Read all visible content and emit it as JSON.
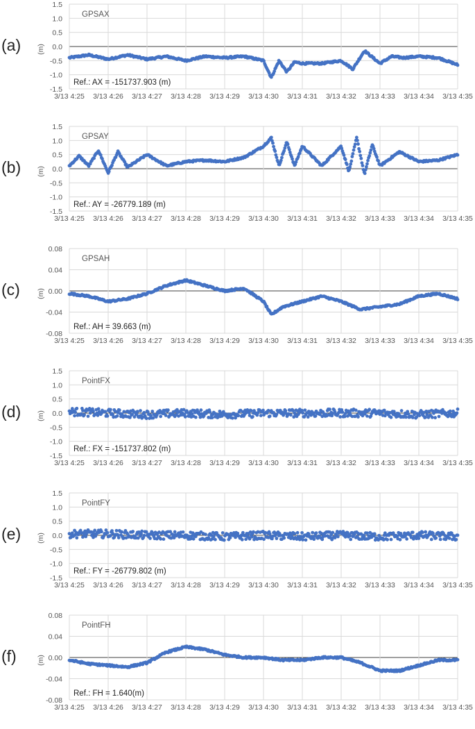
{
  "x_labels": [
    "3/13 4:25",
    "3/13 4:26",
    "3/13 4:27",
    "3/13 4:28",
    "3/13 4:29",
    "3/13 4:30",
    "3/13 4:31",
    "3/13 4:32",
    "3/13 4:33",
    "3/13 4:34",
    "3/13 4:35"
  ],
  "marker_color": "#4472c4",
  "chart_data": [
    {
      "type": "scatter",
      "letter": "(a)",
      "title": "GPSAX",
      "ylabel": "(m)",
      "reference": "Ref.: AX = -151737.903 (m)",
      "ylim": [
        -1.5,
        1.5
      ],
      "yticks": [
        "1.5",
        "1.0",
        "0.5",
        "0.0",
        "-0.5",
        "-1.0",
        "-1.5"
      ],
      "ytick_values": [
        1.5,
        1.0,
        0.5,
        0.0,
        -0.5,
        -1.0,
        -1.5
      ],
      "x_unit": "minutes after 3/13 4:25",
      "xlim": [
        0,
        10
      ],
      "series": [
        {
          "x": [
            0,
            0.5,
            1,
            1.5,
            2,
            2.5,
            3,
            3.5,
            4,
            4.5,
            5,
            5.2,
            5.4,
            5.6,
            5.8,
            6,
            6.5,
            7,
            7.3,
            7.6,
            8,
            8.3,
            8.6,
            9,
            9.5,
            10
          ],
          "y": [
            -0.4,
            -0.3,
            -0.45,
            -0.3,
            -0.45,
            -0.35,
            -0.5,
            -0.35,
            -0.4,
            -0.35,
            -0.5,
            -1.1,
            -0.5,
            -0.9,
            -0.55,
            -0.6,
            -0.6,
            -0.5,
            -0.8,
            -0.15,
            -0.6,
            -0.35,
            -0.4,
            -0.35,
            -0.4,
            -0.65
          ]
        }
      ]
    },
    {
      "type": "scatter",
      "letter": "(b)",
      "title": "GPSAY",
      "ylabel": "(m)",
      "reference": "Ref.: AY =  -26779.189 (m)",
      "ylim": [
        -1.5,
        1.5
      ],
      "yticks": [
        "1.5",
        "1.0",
        "0.5",
        "0.0",
        "-0.5",
        "-1.0",
        "-1.5"
      ],
      "ytick_values": [
        1.5,
        1.0,
        0.5,
        0.0,
        -0.5,
        -1.0,
        -1.5
      ],
      "x_unit": "minutes after 3/13 4:25",
      "xlim": [
        0,
        10
      ],
      "series": [
        {
          "x": [
            0,
            0.25,
            0.5,
            0.75,
            1,
            1.25,
            1.5,
            2,
            2.5,
            3,
            3.5,
            4,
            4.5,
            5,
            5.2,
            5.4,
            5.6,
            5.8,
            6,
            6.5,
            7,
            7.2,
            7.4,
            7.6,
            7.8,
            8,
            8.5,
            9,
            9.5,
            10
          ],
          "y": [
            0.1,
            0.45,
            0.1,
            0.65,
            -0.15,
            0.6,
            0.05,
            0.5,
            0.1,
            0.25,
            0.3,
            0.25,
            0.4,
            0.8,
            1.1,
            0.1,
            0.95,
            0.1,
            0.8,
            0.1,
            0.8,
            -0.1,
            1.1,
            -0.2,
            0.85,
            0.1,
            0.6,
            0.25,
            0.3,
            0.5
          ]
        }
      ]
    },
    {
      "type": "scatter",
      "letter": "(c)",
      "title": "GPSAH",
      "ylabel": "(m)",
      "reference": "Ref.: AH = 39.663 (m)",
      "ylim": [
        -0.08,
        0.08
      ],
      "yticks": [
        "0.08",
        "0.04",
        "0.00",
        "-0.04",
        "-0.08"
      ],
      "ytick_values": [
        0.08,
        0.04,
        0.0,
        -0.04,
        -0.08
      ],
      "x_unit": "minutes after 3/13 4:25",
      "xlim": [
        0,
        10
      ],
      "series": [
        {
          "x": [
            0,
            0.5,
            1,
            1.5,
            2,
            2.5,
            3,
            3.5,
            4,
            4.5,
            5,
            5.2,
            5.5,
            6,
            6.5,
            7,
            7.5,
            8,
            8.5,
            9,
            9.5,
            10
          ],
          "y": [
            -0.005,
            -0.01,
            -0.02,
            -0.015,
            -0.005,
            0.01,
            0.02,
            0.01,
            0.0,
            0.005,
            -0.02,
            -0.045,
            -0.03,
            -0.02,
            -0.01,
            -0.02,
            -0.035,
            -0.03,
            -0.025,
            -0.01,
            -0.005,
            -0.015
          ]
        }
      ]
    },
    {
      "type": "scatter",
      "letter": "(d)",
      "title": "PointFX",
      "ylabel": "(m)",
      "reference": "Ref.: FX = -151737.802 (m)",
      "ylim": [
        -1.5,
        1.5
      ],
      "yticks": [
        "1.5",
        "1.0",
        "0.5",
        "0.0",
        "-0.5",
        "-1.0",
        "-1.5"
      ],
      "ytick_values": [
        1.5,
        1.0,
        0.5,
        0.0,
        -0.5,
        -1.0,
        -1.5
      ],
      "x_unit": "minutes after 3/13 4:25",
      "xlim": [
        0,
        10
      ],
      "series": [
        {
          "x": [
            0,
            1,
            2,
            3,
            4,
            5,
            6,
            7,
            8,
            9,
            10
          ],
          "y": [
            0.05,
            0.0,
            -0.05,
            0.0,
            -0.05,
            0.0,
            0.0,
            0.0,
            0.0,
            -0.05,
            0.0
          ]
        }
      ]
    },
    {
      "type": "scatter",
      "letter": "(e)",
      "title": "PointFY",
      "ylabel": "(m)",
      "reference": "Ref.: FY = -26779.802 (m)",
      "ylim": [
        -1.5,
        1.5
      ],
      "yticks": [
        "1.5",
        "1.0",
        "0.5",
        "0.0",
        "-0.5",
        "-1.0",
        "-1.5"
      ],
      "ytick_values": [
        1.5,
        1.0,
        0.5,
        0.0,
        -0.5,
        -1.0,
        -1.5
      ],
      "x_unit": "minutes after 3/13 4:25",
      "xlim": [
        0,
        10
      ],
      "series": [
        {
          "x": [
            0,
            1,
            2,
            3,
            4,
            5,
            6,
            7,
            8,
            9,
            10
          ],
          "y": [
            0.05,
            0.05,
            0.0,
            0.0,
            -0.05,
            0.0,
            -0.05,
            0.0,
            -0.05,
            0.0,
            -0.05
          ]
        }
      ]
    },
    {
      "type": "scatter",
      "letter": "(f)",
      "title": "PointFH",
      "ylabel": "(m)",
      "reference": "Ref.: FH = 1.640(m)",
      "ylim": [
        -0.08,
        0.08
      ],
      "yticks": [
        "0.08",
        "0.04",
        "0.00",
        "-0.04",
        "-0.08"
      ],
      "ytick_values": [
        0.08,
        0.04,
        0.0,
        -0.04,
        -0.08
      ],
      "x_unit": "minutes after 3/13 4:25",
      "xlim": [
        0,
        10
      ],
      "series": [
        {
          "x": [
            0,
            0.5,
            1,
            1.5,
            2,
            2.5,
            3,
            3.5,
            4,
            4.5,
            5,
            5.5,
            6,
            6.5,
            7,
            7.5,
            8,
            8.5,
            9,
            9.5,
            10
          ],
          "y": [
            -0.005,
            -0.012,
            -0.015,
            -0.018,
            -0.01,
            0.01,
            0.02,
            0.015,
            0.005,
            0.0,
            0.0,
            -0.005,
            -0.005,
            0.0,
            0.0,
            -0.01,
            -0.025,
            -0.025,
            -0.015,
            -0.005,
            -0.005
          ]
        }
      ]
    }
  ]
}
